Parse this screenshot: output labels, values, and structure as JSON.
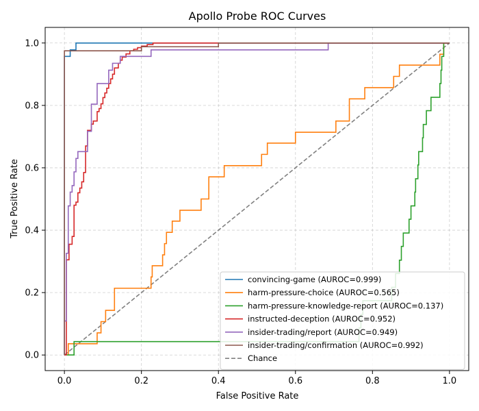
{
  "chart_data": {
    "type": "line",
    "title": "Apollo Probe ROC Curves",
    "xlabel": "False Positive Rate",
    "ylabel": "True Positive Rate",
    "xlim": [
      -0.05,
      1.05
    ],
    "ylim": [
      -0.05,
      1.05
    ],
    "xticks": [
      0.0,
      0.2,
      0.4,
      0.6,
      0.8,
      1.0
    ],
    "yticks": [
      0.0,
      0.2,
      0.4,
      0.6,
      0.8,
      1.0
    ],
    "xtick_labels": [
      "0.0",
      "0.2",
      "0.4",
      "0.6",
      "0.8",
      "1.0"
    ],
    "ytick_labels": [
      "0.0",
      "0.2",
      "0.4",
      "0.6",
      "0.8",
      "1.0"
    ],
    "grid": true,
    "legend_position": "lower-right",
    "series": [
      {
        "name": "convincing-game (AUROC=0.999)",
        "color": "#1f77b4",
        "style": "step",
        "points": [
          [
            0,
            0
          ],
          [
            0,
            0.957
          ],
          [
            0.015,
            0.957
          ],
          [
            0.015,
            0.978
          ],
          [
            0.03,
            0.978
          ],
          [
            0.03,
            1.0
          ],
          [
            1.0,
            1.0
          ]
        ]
      },
      {
        "name": "harm-pressure-choice (AUROC=0.565)",
        "color": "#ff7f0e",
        "style": "step",
        "points": [
          [
            0,
            0
          ],
          [
            0.01,
            0
          ],
          [
            0.01,
            0.036
          ],
          [
            0.085,
            0.036
          ],
          [
            0.085,
            0.071
          ],
          [
            0.095,
            0.071
          ],
          [
            0.095,
            0.107
          ],
          [
            0.107,
            0.107
          ],
          [
            0.107,
            0.143
          ],
          [
            0.13,
            0.143
          ],
          [
            0.13,
            0.214
          ],
          [
            0.225,
            0.214
          ],
          [
            0.225,
            0.25
          ],
          [
            0.228,
            0.25
          ],
          [
            0.228,
            0.286
          ],
          [
            0.255,
            0.286
          ],
          [
            0.255,
            0.321
          ],
          [
            0.26,
            0.321
          ],
          [
            0.26,
            0.357
          ],
          [
            0.265,
            0.357
          ],
          [
            0.265,
            0.393
          ],
          [
            0.28,
            0.393
          ],
          [
            0.28,
            0.429
          ],
          [
            0.3,
            0.429
          ],
          [
            0.3,
            0.464
          ],
          [
            0.355,
            0.464
          ],
          [
            0.355,
            0.5
          ],
          [
            0.375,
            0.5
          ],
          [
            0.375,
            0.571
          ],
          [
            0.415,
            0.571
          ],
          [
            0.415,
            0.607
          ],
          [
            0.512,
            0.607
          ],
          [
            0.512,
            0.643
          ],
          [
            0.527,
            0.643
          ],
          [
            0.527,
            0.679
          ],
          [
            0.6,
            0.679
          ],
          [
            0.6,
            0.714
          ],
          [
            0.705,
            0.714
          ],
          [
            0.705,
            0.75
          ],
          [
            0.74,
            0.75
          ],
          [
            0.74,
            0.821
          ],
          [
            0.78,
            0.821
          ],
          [
            0.78,
            0.857
          ],
          [
            0.855,
            0.857
          ],
          [
            0.855,
            0.893
          ],
          [
            0.87,
            0.893
          ],
          [
            0.87,
            0.929
          ],
          [
            0.975,
            0.929
          ],
          [
            0.975,
            0.964
          ],
          [
            0.985,
            0.964
          ],
          [
            0.985,
            1.0
          ],
          [
            1.0,
            1.0
          ]
        ]
      },
      {
        "name": "harm-pressure-knowledge-report (AUROC=0.137)",
        "color": "#2ca02c",
        "style": "step",
        "points": [
          [
            0,
            0
          ],
          [
            0.025,
            0
          ],
          [
            0.025,
            0.043
          ],
          [
            0.765,
            0.043
          ],
          [
            0.765,
            0.087
          ],
          [
            0.77,
            0.087
          ],
          [
            0.77,
            0.13
          ],
          [
            0.775,
            0.13
          ],
          [
            0.775,
            0.174
          ],
          [
            0.85,
            0.174
          ],
          [
            0.85,
            0.217
          ],
          [
            0.86,
            0.217
          ],
          [
            0.86,
            0.261
          ],
          [
            0.87,
            0.261
          ],
          [
            0.87,
            0.304
          ],
          [
            0.875,
            0.304
          ],
          [
            0.875,
            0.348
          ],
          [
            0.88,
            0.348
          ],
          [
            0.88,
            0.391
          ],
          [
            0.895,
            0.391
          ],
          [
            0.895,
            0.435
          ],
          [
            0.9,
            0.435
          ],
          [
            0.9,
            0.478
          ],
          [
            0.91,
            0.478
          ],
          [
            0.91,
            0.522
          ],
          [
            0.912,
            0.522
          ],
          [
            0.912,
            0.565
          ],
          [
            0.918,
            0.565
          ],
          [
            0.918,
            0.609
          ],
          [
            0.92,
            0.609
          ],
          [
            0.92,
            0.652
          ],
          [
            0.93,
            0.652
          ],
          [
            0.93,
            0.696
          ],
          [
            0.932,
            0.696
          ],
          [
            0.932,
            0.739
          ],
          [
            0.94,
            0.739
          ],
          [
            0.94,
            0.783
          ],
          [
            0.952,
            0.783
          ],
          [
            0.952,
            0.826
          ],
          [
            0.975,
            0.826
          ],
          [
            0.975,
            0.87
          ],
          [
            0.978,
            0.87
          ],
          [
            0.978,
            0.913
          ],
          [
            0.98,
            0.913
          ],
          [
            0.98,
            0.957
          ],
          [
            0.985,
            0.957
          ],
          [
            0.985,
            1.0
          ],
          [
            1.0,
            1.0
          ]
        ]
      },
      {
        "name": "instructed-deception (AUROC=0.952)",
        "color": "#d62728",
        "style": "step",
        "points": [
          [
            0,
            0
          ],
          [
            0.005,
            0
          ],
          [
            0.005,
            0.305
          ],
          [
            0.012,
            0.305
          ],
          [
            0.012,
            0.355
          ],
          [
            0.02,
            0.355
          ],
          [
            0.02,
            0.38
          ],
          [
            0.025,
            0.38
          ],
          [
            0.025,
            0.48
          ],
          [
            0.03,
            0.48
          ],
          [
            0.03,
            0.49
          ],
          [
            0.035,
            0.49
          ],
          [
            0.035,
            0.52
          ],
          [
            0.04,
            0.52
          ],
          [
            0.04,
            0.535
          ],
          [
            0.045,
            0.535
          ],
          [
            0.045,
            0.555
          ],
          [
            0.05,
            0.555
          ],
          [
            0.05,
            0.585
          ],
          [
            0.055,
            0.585
          ],
          [
            0.055,
            0.67
          ],
          [
            0.06,
            0.67
          ],
          [
            0.06,
            0.72
          ],
          [
            0.07,
            0.72
          ],
          [
            0.07,
            0.74
          ],
          [
            0.075,
            0.74
          ],
          [
            0.075,
            0.75
          ],
          [
            0.085,
            0.75
          ],
          [
            0.085,
            0.78
          ],
          [
            0.09,
            0.78
          ],
          [
            0.09,
            0.79
          ],
          [
            0.095,
            0.79
          ],
          [
            0.095,
            0.805
          ],
          [
            0.1,
            0.805
          ],
          [
            0.1,
            0.825
          ],
          [
            0.105,
            0.825
          ],
          [
            0.105,
            0.84
          ],
          [
            0.11,
            0.84
          ],
          [
            0.11,
            0.855
          ],
          [
            0.115,
            0.855
          ],
          [
            0.115,
            0.87
          ],
          [
            0.12,
            0.87
          ],
          [
            0.12,
            0.885
          ],
          [
            0.125,
            0.885
          ],
          [
            0.125,
            0.9
          ],
          [
            0.13,
            0.9
          ],
          [
            0.13,
            0.92
          ],
          [
            0.14,
            0.92
          ],
          [
            0.14,
            0.935
          ],
          [
            0.145,
            0.935
          ],
          [
            0.145,
            0.945
          ],
          [
            0.15,
            0.945
          ],
          [
            0.15,
            0.955
          ],
          [
            0.16,
            0.955
          ],
          [
            0.16,
            0.965
          ],
          [
            0.17,
            0.965
          ],
          [
            0.17,
            0.975
          ],
          [
            0.18,
            0.975
          ],
          [
            0.18,
            0.98
          ],
          [
            0.19,
            0.98
          ],
          [
            0.19,
            0.985
          ],
          [
            0.2,
            0.985
          ],
          [
            0.2,
            0.99
          ],
          [
            0.215,
            0.99
          ],
          [
            0.215,
            0.995
          ],
          [
            0.23,
            0.995
          ],
          [
            0.23,
            1.0
          ],
          [
            1.0,
            1.0
          ]
        ]
      },
      {
        "name": "insider-trading/report (AUROC=0.949)",
        "color": "#9467bd",
        "style": "step",
        "points": [
          [
            0,
            0
          ],
          [
            0,
            0.109
          ],
          [
            0.005,
            0.109
          ],
          [
            0.005,
            0.326
          ],
          [
            0.01,
            0.326
          ],
          [
            0.01,
            0.478
          ],
          [
            0.015,
            0.478
          ],
          [
            0.015,
            0.522
          ],
          [
            0.02,
            0.522
          ],
          [
            0.02,
            0.543
          ],
          [
            0.025,
            0.543
          ],
          [
            0.025,
            0.587
          ],
          [
            0.03,
            0.587
          ],
          [
            0.03,
            0.63
          ],
          [
            0.035,
            0.63
          ],
          [
            0.035,
            0.652
          ],
          [
            0.06,
            0.652
          ],
          [
            0.06,
            0.717
          ],
          [
            0.07,
            0.717
          ],
          [
            0.07,
            0.804
          ],
          [
            0.085,
            0.804
          ],
          [
            0.085,
            0.87
          ],
          [
            0.115,
            0.87
          ],
          [
            0.115,
            0.913
          ],
          [
            0.125,
            0.913
          ],
          [
            0.125,
            0.935
          ],
          [
            0.145,
            0.935
          ],
          [
            0.145,
            0.957
          ],
          [
            0.225,
            0.957
          ],
          [
            0.225,
            0.978
          ],
          [
            0.685,
            0.978
          ],
          [
            0.685,
            1.0
          ],
          [
            1.0,
            1.0
          ]
        ]
      },
      {
        "name": "insider-trading/confirmation (AUROC=0.992)",
        "color": "#8c564b",
        "style": "step",
        "points": [
          [
            0,
            0
          ],
          [
            0,
            0.975
          ],
          [
            0.2,
            0.975
          ],
          [
            0.2,
            0.988
          ],
          [
            0.4,
            0.988
          ],
          [
            0.4,
            1.0
          ],
          [
            1.0,
            1.0
          ]
        ]
      },
      {
        "name": "Chance",
        "color": "#808080",
        "style": "dashed",
        "points": [
          [
            0,
            0
          ],
          [
            1,
            1
          ]
        ]
      }
    ]
  }
}
